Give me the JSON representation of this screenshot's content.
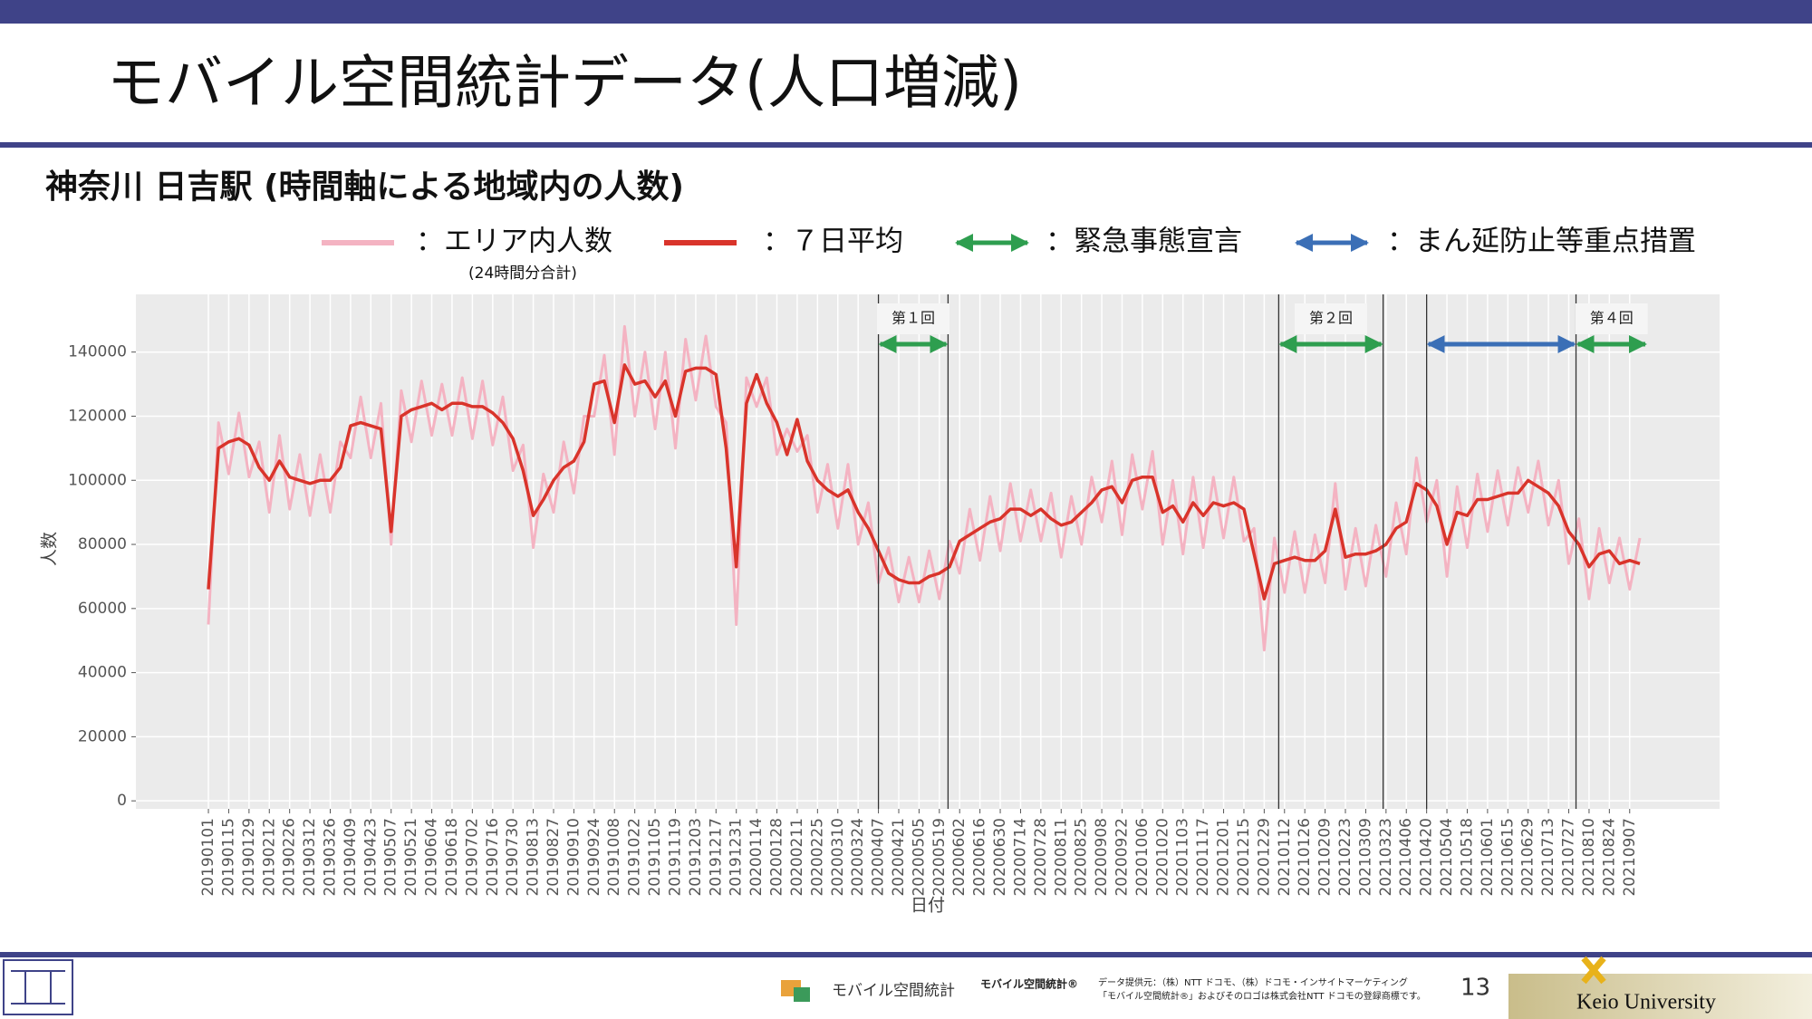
{
  "slide": {
    "title": "モバイル空間統計データ(人口増減)",
    "subtitle": "神奈川 日吉駅 (時間軸による地域内の人数)",
    "page": "13",
    "footer": {
      "logo_text": "モバイル空間統計",
      "brand": "モバイル空間統計®",
      "credit": "データ提供元：（株）NTT ドコモ、（株）ドコモ・インサイトマーケティング",
      "trademark": "「モバイル空間統計®」およびそのロゴは株式会社NTT ドコモの登録商標です。",
      "university": "Keio University"
    }
  },
  "chart_data": {
    "type": "line",
    "xlabel": "日付",
    "ylabel": "人数",
    "xlim": [
      "20181112",
      "20211108"
    ],
    "ylim": [
      -2500,
      158000
    ],
    "yticks": [
      0,
      20000,
      40000,
      60000,
      80000,
      100000,
      120000,
      140000
    ],
    "xticks": [
      "20190101",
      "20190115",
      "20190129",
      "20190212",
      "20190226",
      "20190312",
      "20190326",
      "20190409",
      "20190423",
      "20190507",
      "20190521",
      "20190604",
      "20190618",
      "20190702",
      "20190716",
      "20190730",
      "20190813",
      "20190827",
      "20190910",
      "20190924",
      "20191008",
      "20191022",
      "20191105",
      "20191119",
      "20191203",
      "20191217",
      "20191231",
      "20200114",
      "20200128",
      "20200211",
      "20200225",
      "20200310",
      "20200324",
      "20200407",
      "20200421",
      "20200505",
      "20200519",
      "20200602",
      "20200616",
      "20200630",
      "20200714",
      "20200728",
      "20200811",
      "20200825",
      "20200908",
      "20200922",
      "20201006",
      "20201020",
      "20201103",
      "20201117",
      "20201201",
      "20201215",
      "20201229",
      "20210112",
      "20210126",
      "20210209",
      "20210223",
      "20210309",
      "20210323",
      "20210406",
      "20210420",
      "20210504",
      "20210518",
      "20210601",
      "20210615",
      "20210629",
      "20210713",
      "20210727",
      "20210810",
      "20210824",
      "20210907"
    ],
    "grid": true,
    "x": [
      "20190101",
      "20190108",
      "20190115",
      "20190122",
      "20190129",
      "20190205",
      "20190212",
      "20190219",
      "20190226",
      "20190305",
      "20190312",
      "20190319",
      "20190326",
      "20190402",
      "20190409",
      "20190416",
      "20190423",
      "20190430",
      "20190507",
      "20190514",
      "20190521",
      "20190528",
      "20190604",
      "20190611",
      "20190618",
      "20190625",
      "20190702",
      "20190709",
      "20190716",
      "20190723",
      "20190730",
      "20190806",
      "20190813",
      "20190820",
      "20190827",
      "20190903",
      "20190910",
      "20190917",
      "20190924",
      "20191001",
      "20191008",
      "20191015",
      "20191022",
      "20191029",
      "20191105",
      "20191112",
      "20191119",
      "20191126",
      "20191203",
      "20191210",
      "20191217",
      "20191224",
      "20191231",
      "20200107",
      "20200114",
      "20200121",
      "20200128",
      "20200204",
      "20200211",
      "20200218",
      "20200225",
      "20200303",
      "20200310",
      "20200317",
      "20200324",
      "20200331",
      "20200407",
      "20200414",
      "20200421",
      "20200428",
      "20200505",
      "20200512",
      "20200519",
      "20200526",
      "20200602",
      "20200609",
      "20200616",
      "20200623",
      "20200630",
      "20200707",
      "20200714",
      "20200721",
      "20200728",
      "20200804",
      "20200811",
      "20200818",
      "20200825",
      "20200901",
      "20200908",
      "20200915",
      "20200922",
      "20200929",
      "20201006",
      "20201013",
      "20201020",
      "20201027",
      "20201103",
      "20201110",
      "20201117",
      "20201124",
      "20201201",
      "20201208",
      "20201215",
      "20201222",
      "20201229",
      "20210105",
      "20210112",
      "20210119",
      "20210126",
      "20210202",
      "20210209",
      "20210216",
      "20210223",
      "20210302",
      "20210309",
      "20210316",
      "20210323",
      "20210330",
      "20210406",
      "20210413",
      "20210420",
      "20210427",
      "20210504",
      "20210511",
      "20210518",
      "20210525",
      "20210601",
      "20210608",
      "20210615",
      "20210622",
      "20210629",
      "20210706",
      "20210713",
      "20210720",
      "20210727",
      "20210803",
      "20210810",
      "20210817",
      "20210824",
      "20210831",
      "20210907",
      "20210914"
    ],
    "series": [
      {
        "name": "：エリア内人数",
        "note": "(24時間分合計)",
        "color": "#f4b3c2",
        "width": 3,
        "values": [
          55000,
          118000,
          102000,
          121000,
          101000,
          112000,
          90000,
          114000,
          91000,
          108000,
          89000,
          108000,
          90000,
          112000,
          107000,
          126000,
          107000,
          124000,
          80000,
          128000,
          112000,
          131000,
          114000,
          130000,
          114000,
          132000,
          113000,
          131000,
          111000,
          126000,
          103000,
          111000,
          79000,
          102000,
          90000,
          112000,
          96000,
          120000,
          120000,
          139000,
          108000,
          148000,
          120000,
          140000,
          116000,
          140000,
          110000,
          144000,
          125000,
          145000,
          123000,
          118000,
          55000,
          132000,
          123000,
          132000,
          108000,
          116000,
          109000,
          114000,
          90000,
          105000,
          85000,
          105000,
          80000,
          93000,
          68000,
          79000,
          62000,
          76000,
          62000,
          78000,
          63000,
          81000,
          71000,
          91000,
          75000,
          95000,
          78000,
          99000,
          81000,
          97000,
          81000,
          96000,
          76000,
          95000,
          80000,
          101000,
          87000,
          106000,
          83000,
          108000,
          91000,
          109000,
          80000,
          100000,
          77000,
          101000,
          79000,
          101000,
          82000,
          101000,
          81000,
          85000,
          47000,
          82000,
          65000,
          84000,
          65000,
          83000,
          68000,
          99000,
          66000,
          85000,
          67000,
          86000,
          70000,
          93000,
          77000,
          107000,
          87000,
          100000,
          70000,
          98000,
          79000,
          102000,
          84000,
          103000,
          86000,
          104000,
          90000,
          106000,
          86000,
          100000,
          74000,
          88000,
          63000,
          85000,
          68000,
          82000,
          66000,
          82000
        ]
      },
      {
        "name": "：７日平均",
        "color": "#d9342b",
        "width": 3.5,
        "values": [
          66000,
          110000,
          112000,
          113000,
          111000,
          104000,
          100000,
          106000,
          101000,
          100000,
          99000,
          100000,
          100000,
          104000,
          117000,
          118000,
          117000,
          116000,
          84000,
          120000,
          122000,
          123000,
          124000,
          122000,
          124000,
          124000,
          123000,
          123000,
          121000,
          118000,
          113000,
          103000,
          89000,
          94000,
          100000,
          104000,
          106000,
          112000,
          130000,
          131000,
          118000,
          136000,
          130000,
          131000,
          126000,
          131000,
          120000,
          134000,
          135000,
          135000,
          133000,
          110000,
          73000,
          124000,
          133000,
          124000,
          118000,
          108000,
          119000,
          106000,
          100000,
          97000,
          95000,
          97000,
          90000,
          85000,
          78000,
          71000,
          69000,
          68000,
          68000,
          70000,
          71000,
          73000,
          81000,
          83000,
          85000,
          87000,
          88000,
          91000,
          91000,
          89000,
          91000,
          88000,
          86000,
          87000,
          90000,
          93000,
          97000,
          98000,
          93000,
          100000,
          101000,
          101000,
          90000,
          92000,
          87000,
          93000,
          89000,
          93000,
          92000,
          93000,
          91000,
          77000,
          63000,
          74000,
          75000,
          76000,
          75000,
          75000,
          78000,
          91000,
          76000,
          77000,
          77000,
          78000,
          80000,
          85000,
          87000,
          99000,
          97000,
          92000,
          80000,
          90000,
          89000,
          94000,
          94000,
          95000,
          96000,
          96000,
          100000,
          98000,
          96000,
          92000,
          84000,
          80000,
          73000,
          77000,
          78000,
          74000,
          75000,
          74000
        ]
      }
    ],
    "period_types": [
      {
        "name": "：緊急事態宣言",
        "color": "#2e9e4f"
      },
      {
        "name": "：まん延防止等重点措置",
        "color": "#3b6fb6"
      }
    ],
    "periods": [
      {
        "label": "第１回",
        "type": 0,
        "start": "20200407",
        "end": "20200525"
      },
      {
        "label": "第２回",
        "type": 0,
        "start": "20210108",
        "end": "20210321"
      },
      {
        "type": 1,
        "start": "20210420",
        "end": "20210801"
      },
      {
        "label": "第４回",
        "type": 0,
        "start": "20210801",
        "end": "20210919"
      }
    ],
    "vlines": [
      "20200407",
      "20200525",
      "20210108",
      "20210321",
      "20210420",
      "20210801"
    ]
  }
}
